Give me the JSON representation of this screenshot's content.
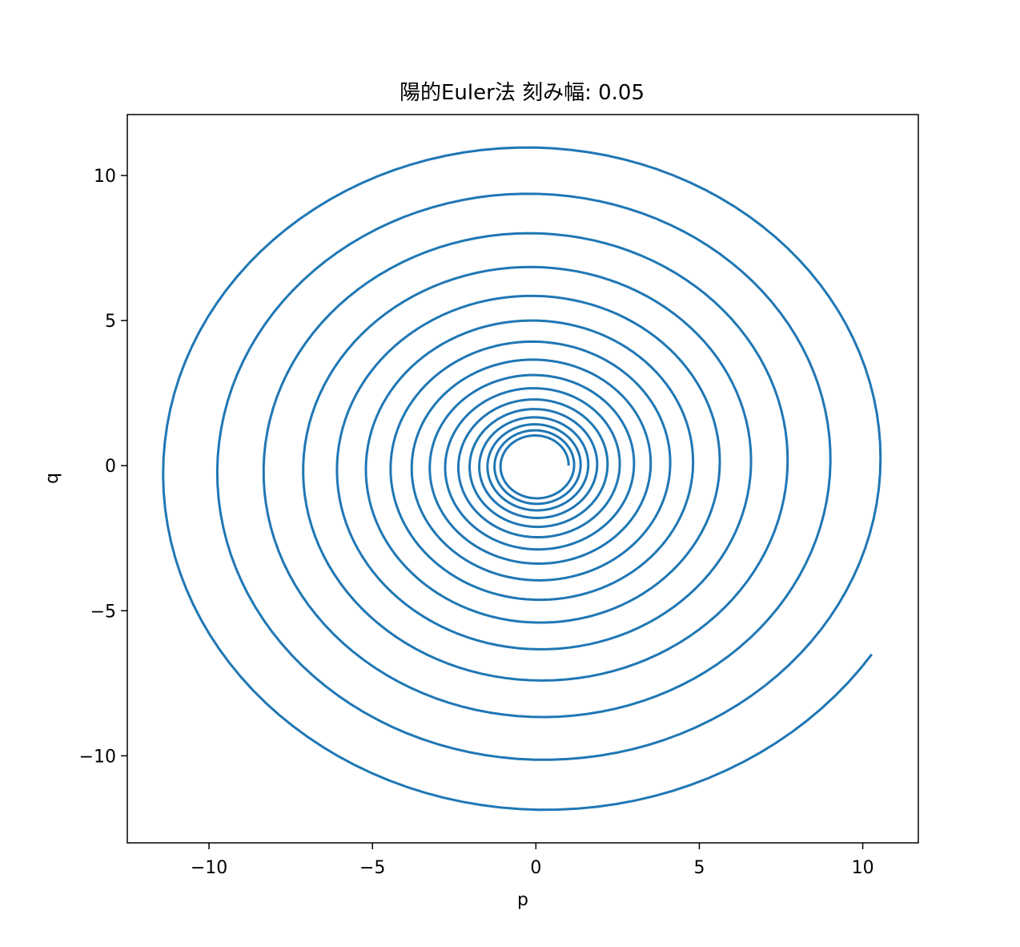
{
  "chart_data": {
    "type": "line",
    "title": "陽的Euler法 刻み幅: 0.05",
    "xlabel": "p",
    "ylabel": "q",
    "xlim": [
      -12.5,
      11.7
    ],
    "ylim": [
      -13.0,
      12.1
    ],
    "xticks": [
      -10,
      -5,
      0,
      5,
      10
    ],
    "yticks": [
      -10,
      -5,
      0,
      5,
      10
    ],
    "xtick_labels": [
      "−10",
      "−5",
      "0",
      "5",
      "10"
    ],
    "ytick_labels": [
      "−10",
      "−5",
      "0",
      "5",
      "10"
    ],
    "grid": false,
    "legend": "none",
    "series": [
      {
        "method": "explicit Euler",
        "step_size": 0.05,
        "color": "#1f77b4",
        "initial": {
          "p": 1.0,
          "q": 0.0
        },
        "end": {
          "p": 10.3,
          "q": -6.5
        }
      }
    ]
  }
}
